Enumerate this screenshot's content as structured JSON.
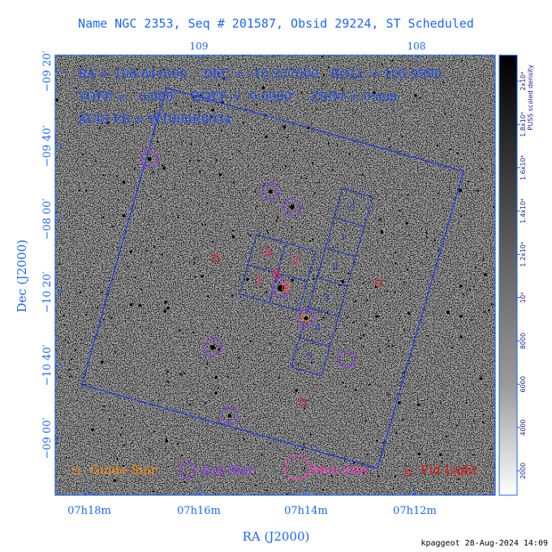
{
  "title": "Name NGC 2353, Seq # 201587, Obsid 29224, ST Scheduled",
  "info": {
    "line1": "RA = 108.641000    DEC = -10.257000   ROLL = 105.9990",
    "line2": "YOFF =   0.000'    ZOFF =  0.0000'    ZSIM = 0 mm",
    "line3": "ACIS PB = WT006E6034"
  },
  "axes": {
    "xlabel": "RA (J2000)",
    "ylabel": "Dec (J2000)",
    "x_ticks_bottom": [
      "07h18m",
      "07h16m",
      "07h14m",
      "07h12m"
    ],
    "x_ticks_top": [
      "109",
      "108"
    ],
    "y_ticks_left": [
      "−09 20′",
      "−09 40′",
      "−08 00′",
      "−10 20′",
      "−10 40′",
      "−09 00′"
    ]
  },
  "ccd": {
    "imaging": [
      "0",
      "1",
      "2",
      "3"
    ],
    "spectro": [
      "0",
      "1",
      "2",
      "3",
      "4",
      "5"
    ]
  },
  "legend": {
    "guide": "Guide Star",
    "acq": "Acq Star",
    "mon": "Mon Star",
    "fid": "Fid Light"
  },
  "colorbar": {
    "title": "PUSS scaled density",
    "ticks": [
      "2000",
      "4000",
      "6000",
      "8000",
      "10⁴",
      "1.2x10⁴",
      "1.4x10⁴",
      "1.6x10⁴",
      "1.8x10⁴",
      "2x10⁴"
    ]
  },
  "stamp": "kpaggeot 28-Aug-2024 14:09",
  "colors": {
    "frame": "#1a66ff",
    "guide": "#ff8800",
    "acq": "#9933ff",
    "mon": "#ff33cc",
    "fid": "#ee1111",
    "ccd_imaging": "#ff1a66",
    "ccd_spectro": "#1a33cc"
  }
}
